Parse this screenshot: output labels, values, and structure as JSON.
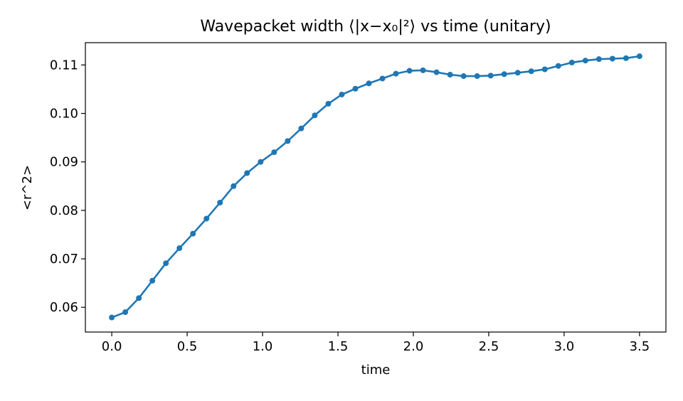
{
  "chart_data": {
    "type": "line",
    "title": "Wavepacket width ⟨|x−x₀|²⟩ vs time (unitary)",
    "xlabel": "time",
    "ylabel": "<r^2>",
    "xlim": [
      -0.175,
      3.675
    ],
    "ylim": [
      0.0549,
      0.1146
    ],
    "xticks": [
      0.0,
      0.5,
      1.0,
      1.5,
      2.0,
      2.5,
      3.0,
      3.5
    ],
    "xtick_labels": [
      "0.0",
      "0.5",
      "1.0",
      "1.5",
      "2.0",
      "2.5",
      "3.0",
      "3.5"
    ],
    "yticks": [
      0.06,
      0.07,
      0.08,
      0.09,
      0.1,
      0.11
    ],
    "ytick_labels": [
      "0.06",
      "0.07",
      "0.08",
      "0.09",
      "0.10",
      "0.11"
    ],
    "grid": false,
    "legend": null,
    "series": [
      {
        "color": "#1f77b4",
        "marker": "circle",
        "x": [
          0.0,
          0.0897,
          0.1795,
          0.2692,
          0.359,
          0.4487,
          0.5385,
          0.6282,
          0.7179,
          0.8077,
          0.8974,
          0.9872,
          1.0769,
          1.1667,
          1.2564,
          1.3462,
          1.4359,
          1.5256,
          1.6154,
          1.7051,
          1.7949,
          1.8846,
          1.9744,
          2.0641,
          2.1538,
          2.2436,
          2.3333,
          2.4231,
          2.5128,
          2.6026,
          2.6923,
          2.7821,
          2.8718,
          2.9615,
          3.0513,
          3.141,
          3.2308,
          3.3205,
          3.4103,
          3.5
        ],
        "y": [
          0.0579,
          0.059,
          0.0619,
          0.0655,
          0.0691,
          0.0722,
          0.0752,
          0.0783,
          0.0816,
          0.085,
          0.0877,
          0.09,
          0.092,
          0.0943,
          0.0969,
          0.0996,
          0.102,
          0.1039,
          0.1051,
          0.1062,
          0.1072,
          0.1082,
          0.1088,
          0.1089,
          0.1085,
          0.108,
          0.1077,
          0.1077,
          0.1078,
          0.1081,
          0.1084,
          0.1087,
          0.1091,
          0.1098,
          0.1105,
          0.1109,
          0.1112,
          0.1113,
          0.1114,
          0.1118
        ]
      }
    ]
  }
}
